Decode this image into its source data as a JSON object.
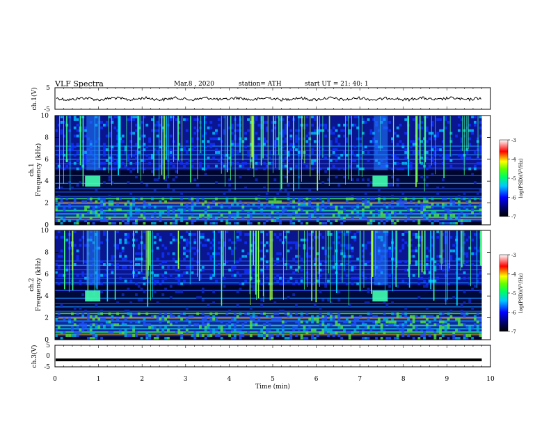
{
  "header": {
    "title": "VLF  Spectra",
    "date": "Mar.8  , 2020",
    "station": "station= ATH",
    "start": "start  UT  =   21: 40: 1"
  },
  "chart_data": [
    {
      "type": "line",
      "panel": "ch1-voltage",
      "ylabel": "ch.1(V)",
      "ylim": [
        -5,
        5
      ],
      "yticks": [
        "5",
        "-5"
      ],
      "xlim": [
        0,
        10
      ],
      "series": [
        {
          "values_note": "",
          "x": [
            0,
            9.8
          ],
          "y": [
            0,
            0
          ]
        }
      ]
    },
    {
      "type": "heatmap",
      "panel": "ch1-spectrogram",
      "ylabel": "ch.1\nFrequency (kHz)",
      "ylabel_top": "ch.1",
      "ylabel_bottom": "Frequency (kHz)",
      "ylim": [
        0,
        10
      ],
      "yticks": [
        "0",
        "2",
        "4",
        "6",
        "8",
        "10"
      ],
      "xlim": [
        0,
        10
      ],
      "data_end_min": 9.8,
      "colorbar": {
        "label": "log(PSD)(V²/Hz)",
        "range": [
          -7,
          -3
        ],
        "ticks": [
          "-3",
          "-4",
          "-5",
          "-6",
          "-7"
        ]
      },
      "bursts": [
        {
          "t": 0.85,
          "f": 4.0
        },
        {
          "t": 7.45,
          "f": 4.0
        }
      ]
    },
    {
      "type": "heatmap",
      "panel": "ch2-spectrogram",
      "ylabel_top": "ch.2",
      "ylabel_bottom": "Frequency (kHz)",
      "ylim": [
        0,
        10
      ],
      "yticks": [
        "0",
        "2",
        "4",
        "6",
        "8",
        "10"
      ],
      "xlim": [
        0,
        10
      ],
      "data_end_min": 9.8,
      "colorbar": {
        "label": "log(PSD)(V²/Hz)",
        "range": [
          -7,
          -3
        ],
        "ticks": [
          "-3",
          "-4",
          "-5",
          "-6",
          "-7"
        ]
      },
      "bursts": [
        {
          "t": 0.85,
          "f": 4.0
        },
        {
          "t": 7.45,
          "f": 4.0
        }
      ]
    },
    {
      "type": "line",
      "panel": "ch3-voltage",
      "ylabel": "ch.3(V)",
      "ylim": [
        -5,
        5
      ],
      "yticks": [
        "5",
        "0",
        "-5"
      ],
      "xlim": [
        0,
        10
      ],
      "xlabel": "Time  (min)",
      "xticks": [
        "0",
        "1",
        "2",
        "3",
        "4",
        "5",
        "6",
        "7",
        "8",
        "9",
        "10"
      ],
      "series": [
        {
          "x": [
            0,
            9.8
          ],
          "y": [
            -2,
            -2
          ]
        }
      ]
    }
  ]
}
